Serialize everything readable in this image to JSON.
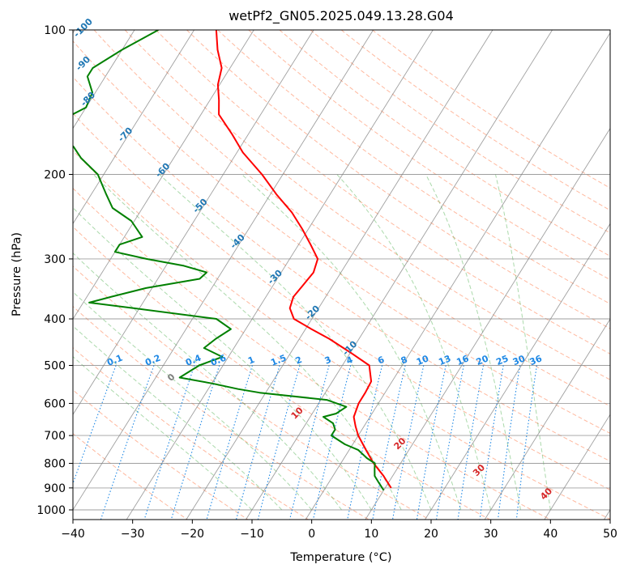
{
  "chart_data": {
    "type": "skew-t log-p",
    "title": "wetPf2_GN05.2025.049.13.28.G04",
    "xlabel": "Temperature (°C)",
    "ylabel": "Pressure (hPa)",
    "xlim": [
      -40,
      50
    ],
    "ylim": [
      1050,
      100
    ],
    "y_scale": "log",
    "x_ticks": [
      "−40",
      "−30",
      "−20",
      "−10",
      "0",
      "10",
      "20",
      "30",
      "40",
      "50"
    ],
    "x_tick_values": [
      -40,
      -30,
      -20,
      -10,
      0,
      10,
      20,
      30,
      40,
      50
    ],
    "y_ticks": [
      "100",
      "200",
      "300",
      "400",
      "500",
      "600",
      "700",
      "800",
      "900",
      "1000"
    ],
    "y_tick_values": [
      100,
      200,
      300,
      400,
      500,
      600,
      700,
      800,
      900,
      1000
    ],
    "grid": true,
    "colors": {
      "temperature": "#ff0000",
      "dewpoint": "#008000",
      "isotherm": "#808080",
      "dry_adiabat": "#ff7f50",
      "moist_adiabat": "#2ca02c",
      "mixing_ratio": "#1e88e5",
      "frost_point": "#1f77b4",
      "theta_e": "#d62728",
      "theta_w": "#808080"
    },
    "series": [
      {
        "key": "temperature",
        "pressure": [
          900,
          870,
          850,
          800,
          750,
          700,
          670,
          640,
          600,
          570,
          540,
          500,
          470,
          440,
          420,
          400,
          380,
          360,
          340,
          320,
          300,
          280,
          260,
          240,
          220,
          200,
          180,
          165,
          150,
          140,
          130,
          120,
          110,
          100
        ],
        "values": [
          11.0,
          9.5,
          8.5,
          5.5,
          2.8,
          0.0,
          -1.4,
          -2.7,
          -3.3,
          -3.3,
          -3.5,
          -5.5,
          -10.0,
          -15.0,
          -19.0,
          -23.0,
          -24.8,
          -25.4,
          -25.0,
          -24.6,
          -25.3,
          -28.0,
          -31.0,
          -34.5,
          -39.0,
          -43.5,
          -49.0,
          -52.7,
          -57.0,
          -58.5,
          -60.3,
          -61.4,
          -64.0,
          -66.3
        ]
      },
      {
        "key": "dewpoint",
        "pressure": [
          910,
          880,
          850,
          820,
          800,
          780,
          750,
          730,
          700,
          680,
          660,
          640,
          630,
          610,
          590,
          570,
          560,
          545,
          530,
          500,
          480,
          460,
          440,
          420,
          400,
          380,
          370,
          360,
          345,
          330,
          320,
          310,
          300,
          290,
          280,
          270,
          250,
          235,
          220,
          200,
          185,
          175,
          165,
          155,
          145,
          135,
          125,
          120,
          110,
          100
        ],
        "values": [
          10.0,
          8.5,
          7.0,
          6.2,
          5.7,
          3.8,
          1.5,
          -1.3,
          -4.5,
          -4.5,
          -5.5,
          -7.8,
          -6.0,
          -5.0,
          -9.0,
          -21.0,
          -25.0,
          -30.0,
          -36.0,
          -34.0,
          -31.0,
          -35.0,
          -34.0,
          -32.5,
          -36.0,
          -51.0,
          -59.0,
          -56.0,
          -51.0,
          -43.0,
          -42.5,
          -47.0,
          -54.0,
          -60.0,
          -60.0,
          -57.0,
          -60.5,
          -65.0,
          -67.5,
          -71.0,
          -75.5,
          -78.0,
          -82.0,
          -83.0,
          -80.0,
          -80.5,
          -83.0,
          -83.0,
          -80.0,
          -76.0
        ]
      }
    ],
    "isotherm_labels": [
      "-100",
      "-90",
      "-80",
      "-70",
      "-60",
      "-50",
      "-40",
      "-30",
      "-20",
      "-10"
    ],
    "isotherm_label_values": [
      -100,
      -90,
      -80,
      -70,
      -60,
      -50,
      -40,
      -30,
      -20,
      -10
    ],
    "mixing_ratio_labels": [
      "0.1",
      "0.2",
      "0.4",
      "0.6",
      "1",
      "1.5",
      "2",
      "3",
      "4",
      "6",
      "8",
      "10",
      "13",
      "16",
      "20",
      "25",
      "30",
      "36"
    ],
    "mixing_ratio_values": [
      0.1,
      0.2,
      0.4,
      0.6,
      1,
      1.5,
      2,
      3,
      4,
      6,
      8,
      10,
      13,
      16,
      20,
      25,
      30,
      36
    ],
    "theta_w_labels": [
      "0",
      "10",
      "20",
      "30",
      "40"
    ],
    "theta_w_values": [
      0,
      10,
      20,
      30,
      40
    ]
  }
}
